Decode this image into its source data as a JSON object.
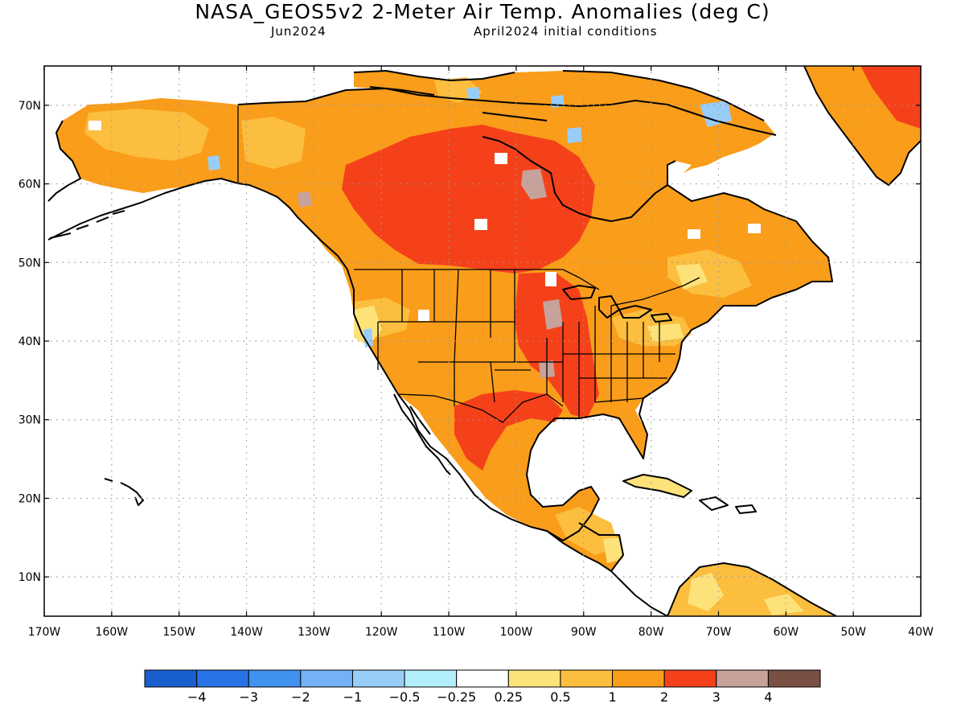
{
  "title": "NASA_GEOS5v2 2-Meter Air Temp. Anomalies (deg C)",
  "subtitle_left": "Jun2024",
  "subtitle_right": "April2024 initial conditions",
  "lat_ticks": [
    "70N",
    "60N",
    "50N",
    "40N",
    "30N",
    "20N",
    "10N"
  ],
  "lon_ticks": [
    "170W",
    "160W",
    "150W",
    "140W",
    "130W",
    "120W",
    "110W",
    "100W",
    "90W",
    "80W",
    "70W",
    "60W",
    "50W",
    "40W"
  ],
  "colorbar": {
    "colors": [
      "#1a5fcf",
      "#2873e6",
      "#4191ef",
      "#72b2f5",
      "#98cdf8",
      "#b3effa",
      "#ffffff",
      "#fde27a",
      "#fcbe3e",
      "#f99d1a",
      "#f5411a",
      "#c7a29a",
      "#7a5044"
    ],
    "labels": [
      "−4",
      "−3",
      "−2",
      "−1",
      "−0.5",
      "−0.25",
      "0.25",
      "0.5",
      "1",
      "2",
      "3",
      "4"
    ]
  },
  "map": {
    "extent_lon": [
      -170,
      -40
    ],
    "extent_lat": [
      5,
      75
    ],
    "colors": {
      "ocean": "#ffffff",
      "anom_0_25_0_5": "#fde27a",
      "anom_0_5_1": "#fcbe3e",
      "anom_1_2": "#f99d1a",
      "anom_2_3": "#f5411a",
      "anom_3_4": "#c7a29a",
      "anom_neg": "#98cdf8",
      "outline": "#000000",
      "grid": "#aaaaaa"
    }
  }
}
